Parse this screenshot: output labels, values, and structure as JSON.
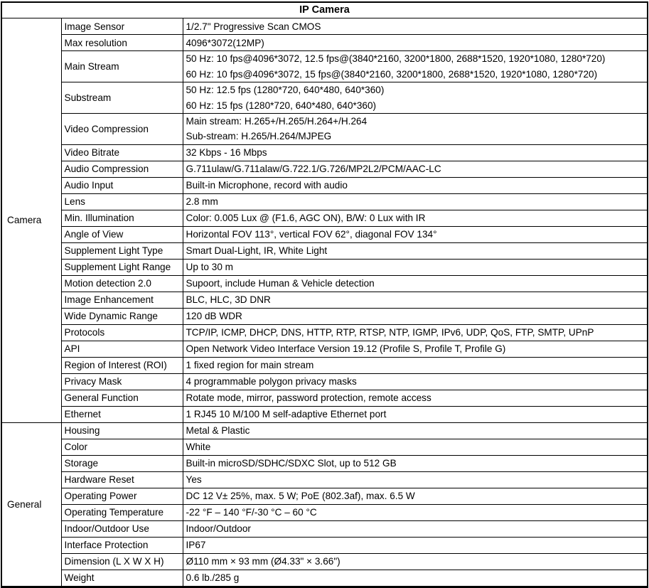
{
  "title": "IP Camera",
  "sections": [
    {
      "group": "Camera",
      "rows": [
        {
          "name": "Image Sensor",
          "value": "1/2.7\" Progressive Scan CMOS"
        },
        {
          "name": "Max resolution",
          "value": "4096*3072(12MP)"
        },
        {
          "name": "Main Stream",
          "value": "50 Hz: 10 fps@4096*3072, 12.5 fps@(3840*2160, 3200*1800, 2688*1520, 1920*1080, 1280*720)\n60 Hz: 10 fps@4096*3072, 15 fps@(3840*2160, 3200*1800, 2688*1520, 1920*1080, 1280*720)"
        },
        {
          "name": "Substream",
          "value": "50 Hz: 12.5 fps (1280*720, 640*480, 640*360)\n60 Hz: 15 fps (1280*720, 640*480, 640*360)"
        },
        {
          "name": "Video Compression",
          "value": "Main stream: H.265+/H.265/H.264+/H.264\nSub-stream: H.265/H.264/MJPEG"
        },
        {
          "name": "Video Bitrate",
          "value": "32 Kbps - 16 Mbps"
        },
        {
          "name": "Audio Compression",
          "value": "G.711ulaw/G.711alaw/G.722.1/G.726/MP2L2/PCM/AAC-LC"
        },
        {
          "name": "Audio Input",
          "value": "Built-in Microphone, record with audio"
        },
        {
          "name": "Lens",
          "value": "2.8 mm"
        },
        {
          "name": "Min. Illumination",
          "value": "Color: 0.005 Lux @ (F1.6, AGC ON), B/W: 0 Lux with IR"
        },
        {
          "name": "Angle of View",
          "value": "Horizontal FOV 113°, vertical FOV 62°, diagonal FOV 134°"
        },
        {
          "name": "Supplement Light Type",
          "value": "Smart Dual-Light, IR, White Light"
        },
        {
          "name": "Supplement Light Range",
          "value": "Up to 30 m"
        },
        {
          "name": "Motion detection 2.0",
          "value": "Supoort, include Human & Vehicle detection"
        },
        {
          "name": "Image Enhancement",
          "value": "BLC, HLC, 3D DNR"
        },
        {
          "name": "Wide Dynamic Range",
          "value": "120 dB WDR"
        },
        {
          "name": "Protocols",
          "value": "TCP/IP, ICMP, DHCP, DNS, HTTP, RTP, RTSP, NTP, IGMP, IPv6, UDP, QoS, FTP, SMTP, UPnP"
        },
        {
          "name": "API",
          "value": "Open Network Video Interface Version 19.12 (Profile S, Profile T, Profile G)"
        },
        {
          "name": "Region of Interest (ROI)",
          "value": "1 fixed region for main stream"
        },
        {
          "name": "Privacy Mask",
          "value": "4 programmable polygon privacy masks"
        },
        {
          "name": "General Function",
          "value": "Rotate mode, mirror, password protection, remote access"
        },
        {
          "name": "Ethernet",
          "value": "1 RJ45 10 M/100 M self-adaptive Ethernet port"
        }
      ]
    },
    {
      "group": "General",
      "rows": [
        {
          "name": "Housing",
          "value": "Metal & Plastic"
        },
        {
          "name": "Color",
          "value": "White"
        },
        {
          "name": "Storage",
          "value": "Built-in microSD/SDHC/SDXC Slot, up to 512 GB"
        },
        {
          "name": "Hardware Reset",
          "value": "Yes"
        },
        {
          "name": "Operating Power",
          "value": "DC 12 V± 25%, max. 5 W; PoE (802.3af), max. 6.5 W"
        },
        {
          "name": "Operating Temperature",
          "value": "-22 °F – 140 °F/-30 °C – 60 °C"
        },
        {
          "name": "Indoor/Outdoor Use",
          "value": "Indoor/Outdoor"
        },
        {
          "name": "Interface Protection",
          "value": "IP67"
        },
        {
          "name": "Dimension (L X W X H)",
          "value": "Ø110 mm × 93 mm (Ø4.33\" × 3.66\")"
        },
        {
          "name": "Weight",
          "value": "0.6 lb./285 g"
        }
      ]
    }
  ]
}
